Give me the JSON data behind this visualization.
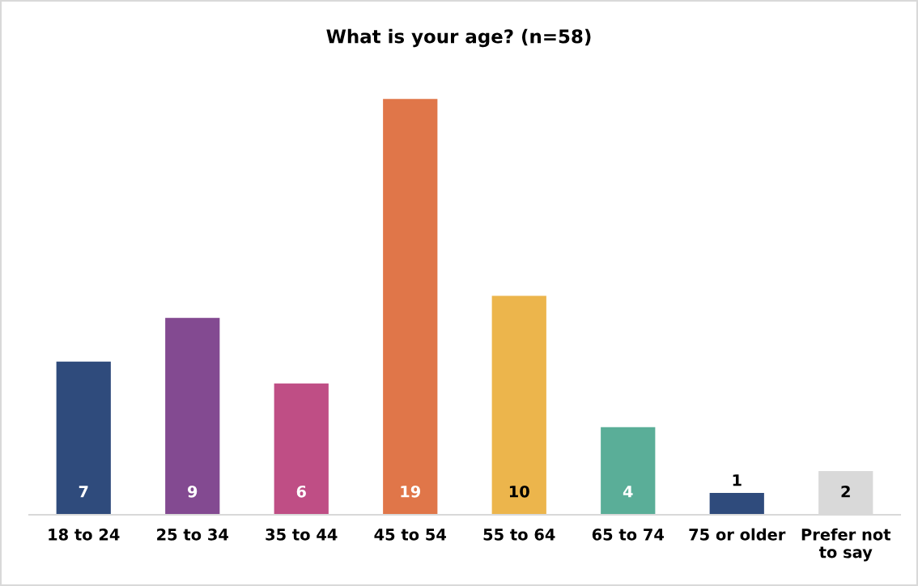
{
  "chart_data": {
    "type": "bar",
    "title": "What is your age? (n=58)",
    "categories": [
      "18 to 24",
      "25 to 34",
      "35 to 44",
      "45 to 54",
      "55 to 64",
      "65 to 74",
      "75 or older",
      "Prefer not\nto say"
    ],
    "values": [
      7,
      9,
      6,
      19,
      10,
      4,
      1,
      2
    ],
    "colors": [
      "#2f4b7c",
      "#834a91",
      "#bf4e85",
      "#e07649",
      "#ecb54c",
      "#5aae98",
      "#2f4b7c",
      "#d9d9d9"
    ],
    "data_labels": true,
    "grid": false,
    "tick_labels": "x"
  }
}
